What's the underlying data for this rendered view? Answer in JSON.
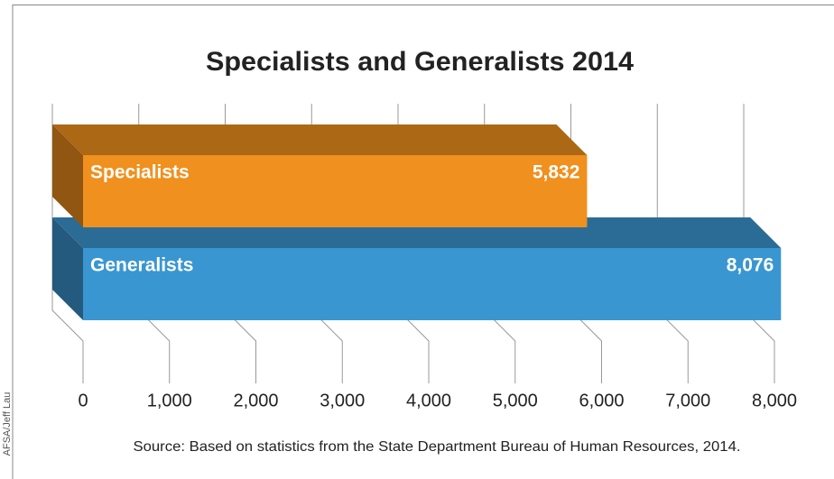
{
  "chart_data": {
    "type": "bar3d",
    "orientation": "horizontal",
    "title": "Specialists and Generalists 2014",
    "categories": [
      "Specialists",
      "Generalists"
    ],
    "values": [
      5832,
      8076
    ],
    "value_labels": [
      "5,832",
      "8,076"
    ],
    "colors": [
      "#f0901e",
      "#3a96d0"
    ],
    "xlim": [
      0,
      8000
    ],
    "xticks": [
      0,
      {
        "value": 1000,
        "label": "1,000"
      },
      {
        "value": 2000,
        "label": "2,000"
      },
      {
        "value": 3000,
        "label": "3,000"
      },
      {
        "value": 4000,
        "label": "4,000"
      },
      {
        "value": 5000,
        "label": "5,000"
      },
      {
        "value": 6000,
        "label": "6,000"
      },
      {
        "value": 7000,
        "label": "7,000"
      },
      {
        "value": 8000,
        "label": "8,000"
      }
    ],
    "grid": true,
    "source": "Source: Based on statistics from the State Department Bureau of Human Resources, 2014.",
    "credit": "AFSA/Jeff Lau"
  }
}
